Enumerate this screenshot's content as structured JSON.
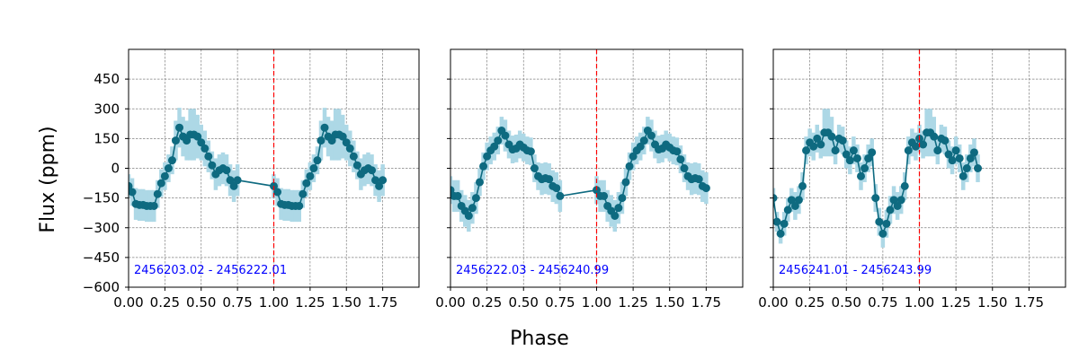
{
  "figure": {
    "xlabel": "Phase",
    "ylabel": "Flux (ppm)"
  },
  "colors": {
    "marker": "#0e6a80",
    "errorbar": "#add8e6",
    "grid": "#808080",
    "vline": "#ff0000",
    "annotation": "#0000ff"
  },
  "chart_data": [
    {
      "type": "scatter",
      "annotation": "2456203.02 - 2456222.01",
      "x_range": [
        0,
        2.0
      ],
      "y_range": [
        -600,
        600
      ],
      "x_ticks": [
        "0.00",
        "0.25",
        "0.50",
        "0.75",
        "1.00",
        "1.25",
        "1.50",
        "1.75"
      ],
      "y_ticks": [
        "450",
        "300",
        "150",
        "0",
        "−150",
        "−300",
        "−450",
        "−600"
      ],
      "vline_x": 1.0,
      "grid": true,
      "points": [
        [
          0.0,
          -90,
          60
        ],
        [
          0.025,
          -120,
          70
        ],
        [
          0.05,
          -180,
          80
        ],
        [
          0.075,
          -185,
          80
        ],
        [
          0.1,
          -185,
          80
        ],
        [
          0.125,
          -190,
          80
        ],
        [
          0.15,
          -190,
          80
        ],
        [
          0.175,
          -190,
          80
        ],
        [
          0.2,
          -130,
          70
        ],
        [
          0.225,
          -75,
          70
        ],
        [
          0.25,
          -40,
          70
        ],
        [
          0.275,
          0,
          70
        ],
        [
          0.3,
          40,
          70
        ],
        [
          0.325,
          140,
          100
        ],
        [
          0.35,
          205,
          100
        ],
        [
          0.375,
          160,
          100
        ],
        [
          0.4,
          140,
          100
        ],
        [
          0.425,
          170,
          130
        ],
        [
          0.45,
          170,
          130
        ],
        [
          0.475,
          160,
          110
        ],
        [
          0.5,
          130,
          90
        ],
        [
          0.525,
          100,
          90
        ],
        [
          0.55,
          60,
          80
        ],
        [
          0.575,
          15,
          70
        ],
        [
          0.6,
          -30,
          80
        ],
        [
          0.625,
          -10,
          80
        ],
        [
          0.65,
          0,
          80
        ],
        [
          0.675,
          -10,
          80
        ],
        [
          0.7,
          -60,
          80
        ],
        [
          0.725,
          -90,
          80
        ],
        [
          0.75,
          -60,
          80
        ],
        [
          1.0,
          -90,
          60
        ],
        [
          1.025,
          -120,
          70
        ],
        [
          1.05,
          -180,
          80
        ],
        [
          1.075,
          -185,
          80
        ],
        [
          1.1,
          -185,
          80
        ],
        [
          1.125,
          -190,
          80
        ],
        [
          1.15,
          -190,
          80
        ],
        [
          1.175,
          -190,
          80
        ],
        [
          1.2,
          -130,
          70
        ],
        [
          1.225,
          -75,
          70
        ],
        [
          1.25,
          -40,
          70
        ],
        [
          1.275,
          0,
          70
        ],
        [
          1.3,
          40,
          70
        ],
        [
          1.325,
          140,
          100
        ],
        [
          1.35,
          205,
          100
        ],
        [
          1.375,
          160,
          100
        ],
        [
          1.4,
          140,
          100
        ],
        [
          1.425,
          170,
          130
        ],
        [
          1.45,
          170,
          130
        ],
        [
          1.475,
          160,
          110
        ],
        [
          1.5,
          130,
          90
        ],
        [
          1.525,
          100,
          90
        ],
        [
          1.55,
          60,
          80
        ],
        [
          1.575,
          15,
          70
        ],
        [
          1.6,
          -30,
          80
        ],
        [
          1.625,
          -10,
          80
        ],
        [
          1.65,
          0,
          80
        ],
        [
          1.675,
          -10,
          80
        ],
        [
          1.7,
          -60,
          80
        ],
        [
          1.725,
          -90,
          80
        ],
        [
          1.75,
          -60,
          80
        ]
      ]
    },
    {
      "type": "scatter",
      "annotation": "2456222.03 - 2456240.99",
      "x_range": [
        0,
        2.0
      ],
      "y_range": [
        -600,
        600
      ],
      "x_ticks": [
        "0.00",
        "0.25",
        "0.50",
        "0.75",
        "1.00",
        "1.25",
        "1.50",
        "1.75"
      ],
      "y_ticks": [],
      "vline_x": 1.0,
      "grid": true,
      "points": [
        [
          0.0,
          -110,
          70
        ],
        [
          0.025,
          -140,
          80
        ],
        [
          0.05,
          -140,
          80
        ],
        [
          0.075,
          -190,
          80
        ],
        [
          0.1,
          -215,
          80
        ],
        [
          0.125,
          -240,
          80
        ],
        [
          0.15,
          -200,
          80
        ],
        [
          0.175,
          -150,
          80
        ],
        [
          0.2,
          -70,
          70
        ],
        [
          0.225,
          10,
          70
        ],
        [
          0.25,
          60,
          70
        ],
        [
          0.275,
          90,
          70
        ],
        [
          0.3,
          110,
          70
        ],
        [
          0.325,
          140,
          70
        ],
        [
          0.35,
          190,
          70
        ],
        [
          0.375,
          165,
          80
        ],
        [
          0.4,
          120,
          70
        ],
        [
          0.425,
          95,
          70
        ],
        [
          0.45,
          100,
          70
        ],
        [
          0.475,
          120,
          70
        ],
        [
          0.5,
          105,
          70
        ],
        [
          0.525,
          90,
          70
        ],
        [
          0.55,
          85,
          70
        ],
        [
          0.575,
          0,
          70
        ],
        [
          0.6,
          -40,
          70
        ],
        [
          0.625,
          -55,
          80
        ],
        [
          0.65,
          -50,
          80
        ],
        [
          0.675,
          -55,
          80
        ],
        [
          0.7,
          -90,
          80
        ],
        [
          0.725,
          -100,
          80
        ],
        [
          0.75,
          -140,
          80
        ],
        [
          1.0,
          -110,
          70
        ],
        [
          1.025,
          -140,
          80
        ],
        [
          1.05,
          -140,
          80
        ],
        [
          1.075,
          -190,
          80
        ],
        [
          1.1,
          -215,
          80
        ],
        [
          1.125,
          -240,
          80
        ],
        [
          1.15,
          -200,
          80
        ],
        [
          1.175,
          -150,
          80
        ],
        [
          1.2,
          -70,
          70
        ],
        [
          1.225,
          10,
          70
        ],
        [
          1.25,
          60,
          70
        ],
        [
          1.275,
          90,
          70
        ],
        [
          1.3,
          110,
          70
        ],
        [
          1.325,
          140,
          70
        ],
        [
          1.35,
          190,
          70
        ],
        [
          1.375,
          165,
          80
        ],
        [
          1.4,
          120,
          70
        ],
        [
          1.425,
          95,
          70
        ],
        [
          1.45,
          100,
          70
        ],
        [
          1.475,
          120,
          70
        ],
        [
          1.5,
          105,
          70
        ],
        [
          1.525,
          90,
          70
        ],
        [
          1.55,
          85,
          70
        ],
        [
          1.575,
          45,
          70
        ],
        [
          1.6,
          0,
          70
        ],
        [
          1.625,
          -40,
          70
        ],
        [
          1.65,
          -55,
          80
        ],
        [
          1.675,
          -50,
          80
        ],
        [
          1.7,
          -55,
          80
        ],
        [
          1.725,
          -90,
          80
        ],
        [
          1.75,
          -100,
          80
        ]
      ]
    },
    {
      "type": "scatter",
      "annotation": "2456241.01 - 2456243.99",
      "x_range": [
        0,
        2.0
      ],
      "y_range": [
        -600,
        600
      ],
      "x_ticks": [
        "0.00",
        "0.25",
        "0.50",
        "0.75",
        "1.00",
        "1.25",
        "1.50",
        "1.75"
      ],
      "y_ticks": [],
      "vline_x": 1.0,
      "grid": true,
      "points": [
        [
          0.0,
          -150,
          50
        ],
        [
          0.025,
          -270,
          50
        ],
        [
          0.05,
          -330,
          50
        ],
        [
          0.075,
          -280,
          60
        ],
        [
          0.1,
          -210,
          60
        ],
        [
          0.125,
          -160,
          60
        ],
        [
          0.15,
          -190,
          70
        ],
        [
          0.175,
          -160,
          70
        ],
        [
          0.2,
          -90,
          70
        ],
        [
          0.225,
          90,
          70
        ],
        [
          0.25,
          130,
          70
        ],
        [
          0.275,
          110,
          70
        ],
        [
          0.3,
          150,
          70
        ],
        [
          0.325,
          120,
          70
        ],
        [
          0.35,
          180,
          120
        ],
        [
          0.375,
          180,
          120
        ],
        [
          0.4,
          160,
          100
        ],
        [
          0.425,
          90,
          70
        ],
        [
          0.45,
          150,
          70
        ],
        [
          0.475,
          140,
          70
        ],
        [
          0.5,
          70,
          70
        ],
        [
          0.525,
          40,
          70
        ],
        [
          0.55,
          90,
          70
        ],
        [
          0.575,
          50,
          70
        ],
        [
          0.6,
          -40,
          70
        ],
        [
          0.625,
          0,
          70
        ],
        [
          0.65,
          50,
          70
        ],
        [
          0.675,
          80,
          70
        ],
        [
          0.7,
          -150,
          70
        ],
        [
          0.725,
          -270,
          70
        ],
        [
          0.75,
          -330,
          70
        ],
        [
          0.775,
          -280,
          70
        ],
        [
          0.8,
          -210,
          70
        ],
        [
          0.825,
          -160,
          70
        ],
        [
          0.85,
          -190,
          70
        ],
        [
          0.875,
          -160,
          70
        ],
        [
          0.9,
          -90,
          70
        ],
        [
          0.925,
          90,
          70
        ],
        [
          0.95,
          130,
          70
        ],
        [
          0.975,
          110,
          70
        ],
        [
          1.0,
          150,
          70
        ],
        [
          1.025,
          120,
          70
        ],
        [
          1.05,
          180,
          120
        ],
        [
          1.075,
          180,
          120
        ],
        [
          1.1,
          160,
          100
        ],
        [
          1.125,
          90,
          70
        ],
        [
          1.15,
          150,
          70
        ],
        [
          1.175,
          140,
          70
        ],
        [
          1.2,
          70,
          70
        ],
        [
          1.225,
          40,
          70
        ],
        [
          1.25,
          90,
          70
        ],
        [
          1.275,
          50,
          70
        ],
        [
          1.3,
          -40,
          70
        ],
        [
          1.325,
          0,
          70
        ],
        [
          1.35,
          50,
          70
        ],
        [
          1.375,
          80,
          70
        ],
        [
          1.4,
          0,
          70
        ]
      ]
    }
  ]
}
